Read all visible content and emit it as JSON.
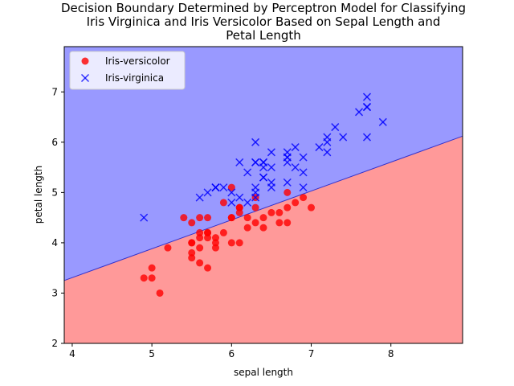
{
  "chart_data": {
    "type": "scatter",
    "title": [
      "Decision Boundary Determined by Perceptron Model for Classifying",
      "Iris Virginica and Iris Versicolor Based on Sepal Length and",
      "Petal Length"
    ],
    "xlabel": "sepal length",
    "ylabel": "petal length",
    "xlim": [
      3.9,
      8.9
    ],
    "ylim": [
      2.0,
      7.9
    ],
    "xticks": [
      "4",
      "5",
      "6",
      "7",
      "8"
    ],
    "yticks": [
      "2",
      "3",
      "4",
      "5",
      "6",
      "7"
    ],
    "legend_position": "top-left",
    "decision_boundary": {
      "x": [
        3.9,
        8.9
      ],
      "y": [
        3.25,
        6.12
      ],
      "region_above_color": "#9999ff",
      "region_below_color": "#ff9999",
      "line_color": "#3333cc"
    },
    "series": [
      {
        "name": "Iris-versicolor",
        "marker": "circle",
        "color": "#ff0000",
        "points": [
          [
            7.0,
            4.7
          ],
          [
            6.4,
            4.5
          ],
          [
            6.9,
            4.9
          ],
          [
            5.5,
            4.0
          ],
          [
            6.5,
            4.6
          ],
          [
            5.7,
            4.5
          ],
          [
            6.3,
            4.7
          ],
          [
            4.9,
            3.3
          ],
          [
            6.6,
            4.6
          ],
          [
            5.2,
            3.9
          ],
          [
            5.0,
            3.5
          ],
          [
            5.9,
            4.2
          ],
          [
            6.0,
            4.0
          ],
          [
            6.1,
            4.7
          ],
          [
            5.6,
            3.6
          ],
          [
            6.7,
            4.4
          ],
          [
            5.6,
            4.5
          ],
          [
            5.8,
            4.1
          ],
          [
            6.2,
            4.5
          ],
          [
            5.6,
            3.9
          ],
          [
            5.9,
            4.8
          ],
          [
            6.1,
            4.0
          ],
          [
            6.3,
            4.9
          ],
          [
            6.1,
            4.7
          ],
          [
            6.4,
            4.3
          ],
          [
            6.6,
            4.4
          ],
          [
            6.8,
            4.8
          ],
          [
            6.7,
            5.0
          ],
          [
            6.0,
            4.5
          ],
          [
            5.7,
            3.5
          ],
          [
            5.5,
            3.8
          ],
          [
            5.5,
            3.7
          ],
          [
            5.8,
            3.9
          ],
          [
            6.0,
            5.1
          ],
          [
            5.4,
            4.5
          ],
          [
            6.0,
            4.5
          ],
          [
            6.7,
            4.7
          ],
          [
            6.3,
            4.4
          ],
          [
            5.6,
            4.1
          ],
          [
            5.5,
            4.0
          ],
          [
            5.5,
            4.4
          ],
          [
            6.1,
            4.6
          ],
          [
            5.8,
            4.0
          ],
          [
            5.0,
            3.3
          ],
          [
            5.6,
            4.2
          ],
          [
            5.7,
            4.2
          ],
          [
            5.7,
            4.2
          ],
          [
            6.2,
            4.3
          ],
          [
            5.1,
            3.0
          ],
          [
            5.7,
            4.1
          ]
        ]
      },
      {
        "name": "Iris-virginica",
        "marker": "x",
        "color": "#0000ff",
        "points": [
          [
            6.3,
            6.0
          ],
          [
            5.8,
            5.1
          ],
          [
            7.1,
            5.9
          ],
          [
            6.3,
            5.6
          ],
          [
            6.5,
            5.8
          ],
          [
            7.6,
            6.6
          ],
          [
            4.9,
            4.5
          ],
          [
            7.3,
            6.3
          ],
          [
            6.7,
            5.8
          ],
          [
            7.2,
            6.1
          ],
          [
            6.5,
            5.1
          ],
          [
            6.4,
            5.3
          ],
          [
            6.8,
            5.5
          ],
          [
            5.7,
            5.0
          ],
          [
            5.8,
            5.1
          ],
          [
            6.4,
            5.3
          ],
          [
            6.5,
            5.5
          ],
          [
            7.7,
            6.7
          ],
          [
            7.7,
            6.9
          ],
          [
            6.0,
            5.0
          ],
          [
            6.9,
            5.7
          ],
          [
            5.6,
            4.9
          ],
          [
            7.7,
            6.7
          ],
          [
            6.3,
            4.9
          ],
          [
            6.7,
            5.7
          ],
          [
            7.2,
            6.0
          ],
          [
            6.2,
            4.8
          ],
          [
            6.1,
            4.9
          ],
          [
            6.4,
            5.6
          ],
          [
            7.2,
            5.8
          ],
          [
            7.4,
            6.1
          ],
          [
            7.9,
            6.4
          ],
          [
            6.4,
            5.6
          ],
          [
            6.3,
            5.1
          ],
          [
            6.1,
            5.6
          ],
          [
            7.7,
            6.1
          ],
          [
            6.3,
            5.6
          ],
          [
            6.4,
            5.5
          ],
          [
            6.0,
            4.8
          ],
          [
            6.9,
            5.4
          ],
          [
            6.7,
            5.6
          ],
          [
            6.9,
            5.1
          ],
          [
            5.8,
            5.1
          ],
          [
            6.8,
            5.9
          ],
          [
            6.7,
            5.7
          ],
          [
            6.7,
            5.2
          ],
          [
            6.3,
            5.0
          ],
          [
            6.5,
            5.2
          ],
          [
            6.2,
            5.4
          ],
          [
            5.9,
            5.1
          ]
        ]
      }
    ]
  }
}
